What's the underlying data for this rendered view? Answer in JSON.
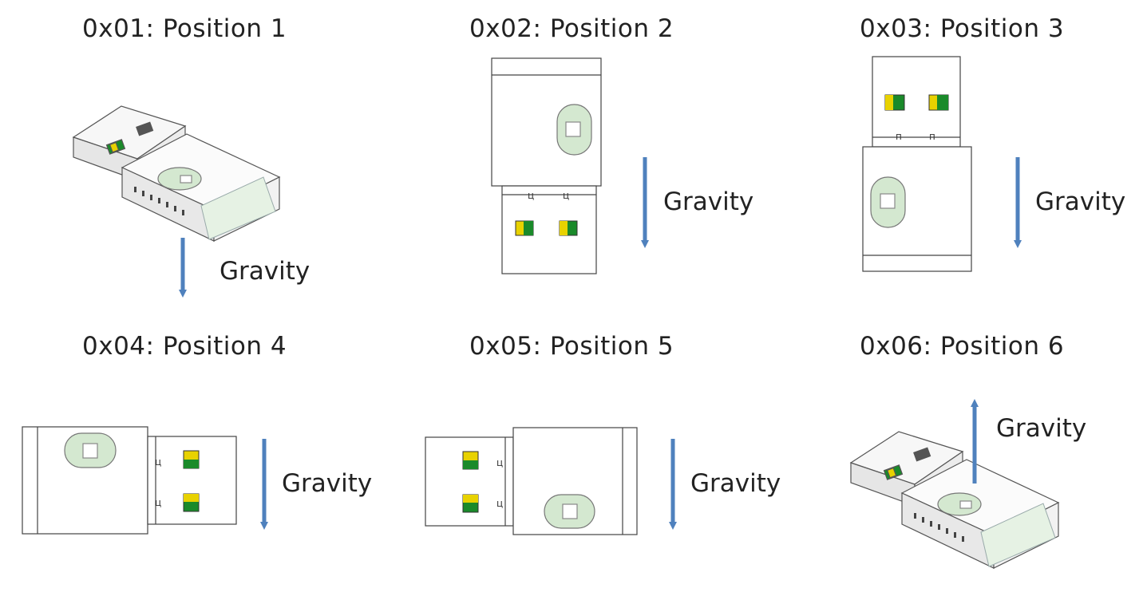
{
  "positions": [
    {
      "title": "0x01: Position 1",
      "gravity": "Gravity",
      "gravity_direction": "down",
      "view": "isometric-top"
    },
    {
      "title": "0x02: Position 2",
      "gravity": "Gravity",
      "gravity_direction": "down",
      "view": "connector-down"
    },
    {
      "title": "0x03: Position 3",
      "gravity": "Gravity",
      "gravity_direction": "down",
      "view": "connector-up"
    },
    {
      "title": "0x04: Position 4",
      "gravity": "Gravity",
      "gravity_direction": "down",
      "view": "connector-right"
    },
    {
      "title": "0x05: Position 5",
      "gravity": "Gravity",
      "gravity_direction": "down",
      "view": "connector-left"
    },
    {
      "title": "0x06: Position 6",
      "gravity": "Gravity",
      "gravity_direction": "up",
      "view": "isometric-top"
    }
  ],
  "colors": {
    "arrow": "#4f81bd",
    "led_window": "#d4e8d0",
    "led_outline": "#7a8a7a",
    "contact_yellow": "#e8d200",
    "contact_green": "#1a8a2a",
    "body_outline": "#444444"
  }
}
